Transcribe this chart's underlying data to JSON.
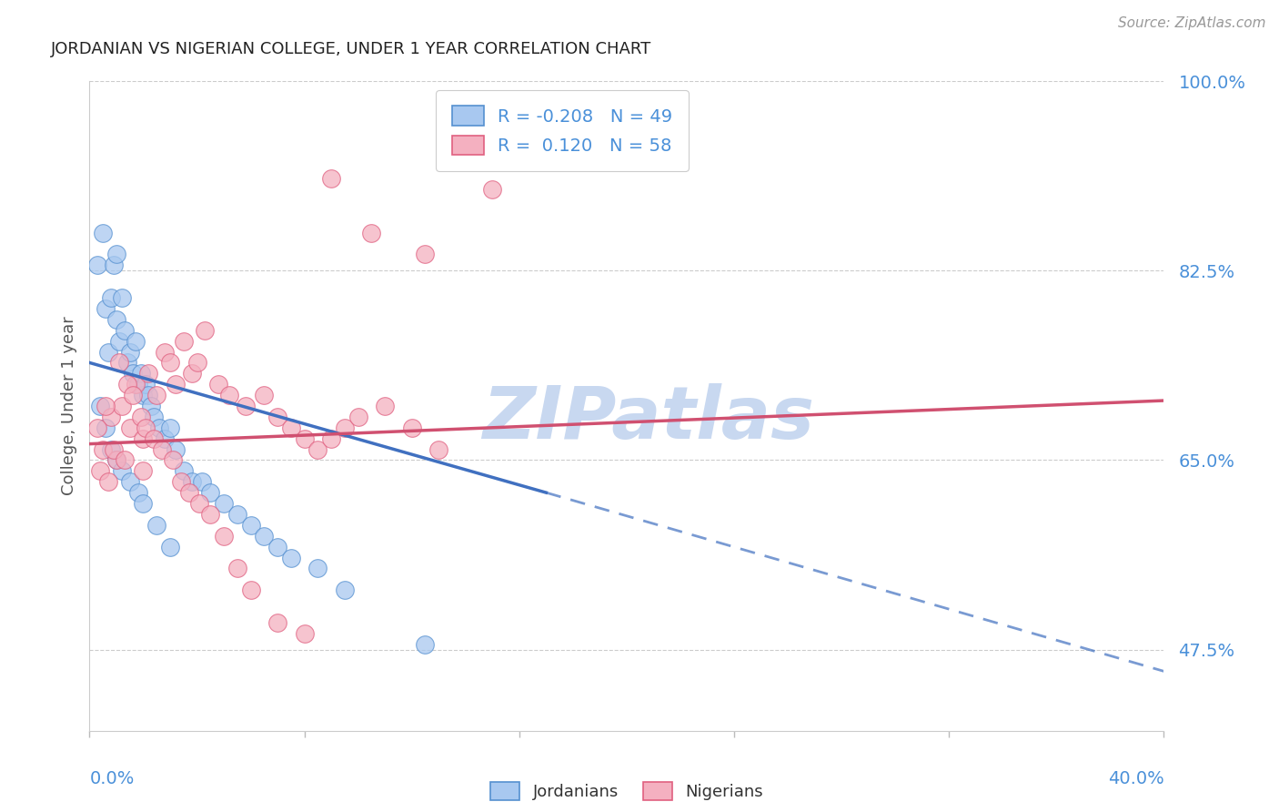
{
  "title": "JORDANIAN VS NIGERIAN COLLEGE, UNDER 1 YEAR CORRELATION CHART",
  "source": "Source: ZipAtlas.com",
  "ylabel": "College, Under 1 year",
  "right_yticks": [
    100.0,
    82.5,
    65.0,
    47.5
  ],
  "right_ytick_labels": [
    "100.0%",
    "82.5%",
    "65.0%",
    "47.5%"
  ],
  "legend_blue_r": "-0.208",
  "legend_blue_n": "49",
  "legend_pink_r": "0.120",
  "legend_pink_n": "58",
  "blue_color": "#A8C8F0",
  "pink_color": "#F4B0C0",
  "blue_edge_color": "#5590D0",
  "pink_edge_color": "#E06080",
  "blue_line_color": "#4070C0",
  "pink_line_color": "#D05070",
  "watermark": "ZIPatlas",
  "watermark_color": "#C8D8F0",
  "title_color": "#222222",
  "axis_label_color": "#4A90D9",
  "blue_scatter_x": [
    0.3,
    0.5,
    0.6,
    0.7,
    0.8,
    0.9,
    1.0,
    1.0,
    1.1,
    1.2,
    1.3,
    1.4,
    1.5,
    1.6,
    1.7,
    1.8,
    1.9,
    2.0,
    2.1,
    2.2,
    2.3,
    2.4,
    2.6,
    2.8,
    3.0,
    3.2,
    3.5,
    3.8,
    4.2,
    4.5,
    5.0,
    5.5,
    6.0,
    6.5,
    7.0,
    7.5,
    8.5,
    9.5,
    12.5,
    0.4,
    0.6,
    0.8,
    1.0,
    1.2,
    1.5,
    1.8,
    2.0,
    2.5,
    3.0
  ],
  "blue_scatter_y": [
    83.0,
    86.0,
    79.0,
    75.0,
    80.0,
    83.0,
    78.0,
    84.0,
    76.0,
    80.0,
    77.0,
    74.0,
    75.0,
    73.0,
    76.0,
    72.0,
    73.0,
    71.0,
    72.0,
    71.0,
    70.0,
    69.0,
    68.0,
    67.0,
    68.0,
    66.0,
    64.0,
    63.0,
    63.0,
    62.0,
    61.0,
    60.0,
    59.0,
    58.0,
    57.0,
    56.0,
    55.0,
    53.0,
    48.0,
    70.0,
    68.0,
    66.0,
    65.0,
    64.0,
    63.0,
    62.0,
    61.0,
    59.0,
    57.0
  ],
  "pink_scatter_x": [
    0.5,
    0.8,
    1.0,
    1.2,
    1.5,
    1.7,
    2.0,
    2.2,
    2.5,
    2.8,
    3.0,
    3.2,
    3.5,
    3.8,
    4.0,
    4.3,
    4.8,
    5.2,
    5.8,
    6.5,
    7.0,
    7.5,
    8.0,
    8.5,
    9.0,
    9.5,
    10.0,
    11.0,
    12.0,
    13.0,
    0.3,
    0.6,
    0.9,
    1.1,
    1.4,
    1.6,
    1.9,
    2.1,
    2.4,
    2.7,
    3.1,
    3.4,
    3.7,
    4.1,
    4.5,
    5.0,
    5.5,
    6.0,
    7.0,
    8.0,
    9.0,
    10.5,
    12.5,
    15.0,
    0.4,
    0.7,
    1.3,
    2.0
  ],
  "pink_scatter_y": [
    66.0,
    69.0,
    65.0,
    70.0,
    68.0,
    72.0,
    67.0,
    73.0,
    71.0,
    75.0,
    74.0,
    72.0,
    76.0,
    73.0,
    74.0,
    77.0,
    72.0,
    71.0,
    70.0,
    71.0,
    69.0,
    68.0,
    67.0,
    66.0,
    67.0,
    68.0,
    69.0,
    70.0,
    68.0,
    66.0,
    68.0,
    70.0,
    66.0,
    74.0,
    72.0,
    71.0,
    69.0,
    68.0,
    67.0,
    66.0,
    65.0,
    63.0,
    62.0,
    61.0,
    60.0,
    58.0,
    55.0,
    53.0,
    50.0,
    49.0,
    91.0,
    86.0,
    84.0,
    90.0,
    64.0,
    63.0,
    65.0,
    64.0
  ],
  "xmin": 0.0,
  "xmax": 40.0,
  "ymin": 40.0,
  "ymax": 100.0,
  "blue_line_x0": 0.0,
  "blue_line_y0": 74.0,
  "blue_line_x1": 17.0,
  "blue_line_y1": 62.0,
  "blue_dash_x0": 17.0,
  "blue_dash_y0": 62.0,
  "blue_dash_x1": 40.0,
  "blue_dash_y1": 45.5,
  "pink_line_x0": 0.0,
  "pink_line_y0": 66.5,
  "pink_line_x1": 40.0,
  "pink_line_y1": 70.5
}
